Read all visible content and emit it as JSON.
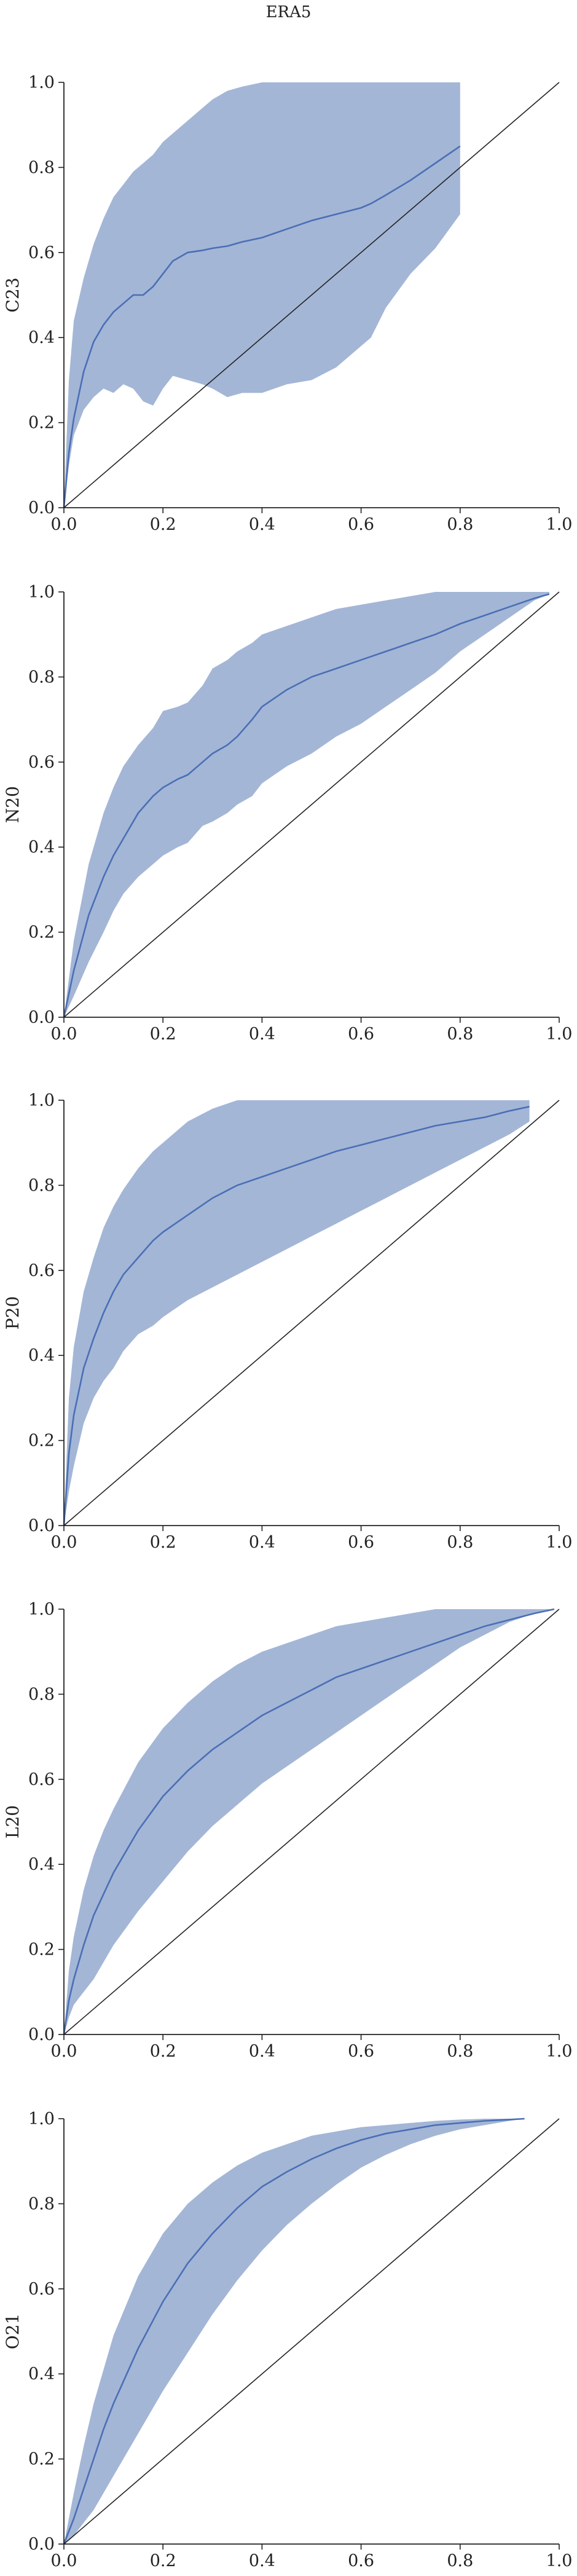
{
  "figure": {
    "title": "ERA5"
  },
  "style": {
    "band_color": "#a4b6d6",
    "line_color": "#4a6fb6",
    "axis_color": "#222222",
    "diagonal_color": "#222222"
  },
  "chart_data": [
    {
      "type": "line",
      "ylabel": "C23",
      "xlim": [
        0,
        1
      ],
      "ylim": [
        0,
        1
      ],
      "xticks": [
        0.0,
        0.2,
        0.4,
        0.6,
        0.8,
        1.0
      ],
      "yticks": [
        0.0,
        0.2,
        0.4,
        0.6,
        0.8,
        1.0
      ],
      "tick_labels": [
        "0.0",
        "0.2",
        "0.4",
        "0.6",
        "0.8",
        "1.0"
      ],
      "diagonal": true,
      "series": [
        {
          "x": [
            0.0,
            0.01,
            0.02,
            0.04,
            0.06,
            0.08,
            0.1,
            0.12,
            0.14,
            0.16,
            0.18,
            0.2,
            0.22,
            0.25,
            0.28,
            0.3,
            0.33,
            0.36,
            0.4,
            0.45,
            0.5,
            0.55,
            0.6,
            0.62,
            0.65,
            0.7,
            0.75,
            0.8
          ],
          "mean": [
            0.0,
            0.13,
            0.21,
            0.32,
            0.39,
            0.43,
            0.46,
            0.48,
            0.5,
            0.5,
            0.52,
            0.55,
            0.58,
            0.6,
            0.605,
            0.61,
            0.615,
            0.625,
            0.635,
            0.655,
            0.675,
            0.69,
            0.705,
            0.715,
            0.735,
            0.77,
            0.81,
            0.85
          ],
          "lower": [
            0.0,
            0.1,
            0.17,
            0.23,
            0.26,
            0.28,
            0.27,
            0.29,
            0.28,
            0.25,
            0.24,
            0.28,
            0.31,
            0.3,
            0.29,
            0.28,
            0.26,
            0.27,
            0.27,
            0.29,
            0.3,
            0.33,
            0.38,
            0.4,
            0.47,
            0.55,
            0.61,
            0.69
          ],
          "upper": [
            0.0,
            0.3,
            0.44,
            0.54,
            0.62,
            0.68,
            0.73,
            0.76,
            0.79,
            0.81,
            0.83,
            0.86,
            0.88,
            0.91,
            0.94,
            0.96,
            0.98,
            0.99,
            1.0,
            1.0,
            1.0,
            1.0,
            1.0,
            1.0,
            1.0,
            1.0,
            1.0,
            1.0
          ]
        }
      ]
    },
    {
      "type": "line",
      "ylabel": "N20",
      "xlim": [
        0,
        1
      ],
      "ylim": [
        0,
        1
      ],
      "xticks": [
        0.0,
        0.2,
        0.4,
        0.6,
        0.8,
        1.0
      ],
      "yticks": [
        0.0,
        0.2,
        0.4,
        0.6,
        0.8,
        1.0
      ],
      "tick_labels": [
        "0.0",
        "0.2",
        "0.4",
        "0.6",
        "0.8",
        "1.0"
      ],
      "diagonal": true,
      "series": [
        {
          "x": [
            0.0,
            0.02,
            0.05,
            0.08,
            0.1,
            0.12,
            0.15,
            0.18,
            0.2,
            0.23,
            0.25,
            0.28,
            0.3,
            0.33,
            0.35,
            0.38,
            0.4,
            0.45,
            0.5,
            0.55,
            0.6,
            0.65,
            0.7,
            0.75,
            0.8,
            0.85,
            0.9,
            0.95,
            0.98
          ],
          "mean": [
            0.0,
            0.11,
            0.24,
            0.33,
            0.38,
            0.42,
            0.48,
            0.52,
            0.54,
            0.56,
            0.57,
            0.6,
            0.62,
            0.64,
            0.66,
            0.7,
            0.73,
            0.77,
            0.8,
            0.82,
            0.84,
            0.86,
            0.88,
            0.9,
            0.925,
            0.945,
            0.965,
            0.985,
            0.995
          ],
          "lower": [
            0.0,
            0.05,
            0.13,
            0.2,
            0.25,
            0.29,
            0.33,
            0.36,
            0.38,
            0.4,
            0.41,
            0.45,
            0.46,
            0.48,
            0.5,
            0.52,
            0.55,
            0.59,
            0.62,
            0.66,
            0.69,
            0.73,
            0.77,
            0.81,
            0.86,
            0.9,
            0.94,
            0.98,
            0.995
          ],
          "upper": [
            0.0,
            0.18,
            0.36,
            0.48,
            0.54,
            0.59,
            0.64,
            0.68,
            0.72,
            0.73,
            0.74,
            0.78,
            0.82,
            0.84,
            0.86,
            0.88,
            0.9,
            0.92,
            0.94,
            0.96,
            0.97,
            0.98,
            0.99,
            1.0,
            1.0,
            1.0,
            1.0,
            1.0,
            1.0
          ]
        }
      ]
    },
    {
      "type": "line",
      "ylabel": "P20",
      "xlim": [
        0,
        1
      ],
      "ylim": [
        0,
        1
      ],
      "xticks": [
        0.0,
        0.2,
        0.4,
        0.6,
        0.8,
        1.0
      ],
      "yticks": [
        0.0,
        0.2,
        0.4,
        0.6,
        0.8,
        1.0
      ],
      "tick_labels": [
        "0.0",
        "0.2",
        "0.4",
        "0.6",
        "0.8",
        "1.0"
      ],
      "diagonal": true,
      "series": [
        {
          "x": [
            0.0,
            0.01,
            0.02,
            0.04,
            0.06,
            0.08,
            0.1,
            0.12,
            0.15,
            0.18,
            0.2,
            0.25,
            0.3,
            0.35,
            0.4,
            0.45,
            0.5,
            0.55,
            0.6,
            0.65,
            0.7,
            0.75,
            0.8,
            0.85,
            0.9,
            0.94
          ],
          "mean": [
            0.0,
            0.17,
            0.26,
            0.37,
            0.44,
            0.5,
            0.55,
            0.59,
            0.63,
            0.67,
            0.69,
            0.73,
            0.77,
            0.8,
            0.82,
            0.84,
            0.86,
            0.88,
            0.895,
            0.91,
            0.925,
            0.94,
            0.95,
            0.96,
            0.975,
            0.985
          ],
          "lower": [
            0.0,
            0.08,
            0.14,
            0.24,
            0.3,
            0.34,
            0.37,
            0.41,
            0.45,
            0.47,
            0.49,
            0.53,
            0.56,
            0.59,
            0.62,
            0.65,
            0.68,
            0.71,
            0.74,
            0.77,
            0.8,
            0.83,
            0.86,
            0.89,
            0.92,
            0.95
          ],
          "upper": [
            0.0,
            0.3,
            0.42,
            0.55,
            0.63,
            0.7,
            0.75,
            0.79,
            0.84,
            0.88,
            0.9,
            0.95,
            0.98,
            1.0,
            1.0,
            1.0,
            1.0,
            1.0,
            1.0,
            1.0,
            1.0,
            1.0,
            1.0,
            1.0,
            1.0,
            1.0
          ]
        }
      ]
    },
    {
      "type": "line",
      "ylabel": "L20",
      "xlim": [
        0,
        1
      ],
      "ylim": [
        0,
        1
      ],
      "xticks": [
        0.0,
        0.2,
        0.4,
        0.6,
        0.8,
        1.0
      ],
      "yticks": [
        0.0,
        0.2,
        0.4,
        0.6,
        0.8,
        1.0
      ],
      "tick_labels": [
        "0.0",
        "0.2",
        "0.4",
        "0.6",
        "0.8",
        "1.0"
      ],
      "diagonal": true,
      "series": [
        {
          "x": [
            0.0,
            0.01,
            0.02,
            0.04,
            0.06,
            0.08,
            0.1,
            0.15,
            0.2,
            0.25,
            0.3,
            0.35,
            0.4,
            0.45,
            0.5,
            0.55,
            0.6,
            0.65,
            0.7,
            0.75,
            0.8,
            0.85,
            0.9,
            0.95,
            0.99
          ],
          "mean": [
            0.0,
            0.08,
            0.13,
            0.21,
            0.28,
            0.33,
            0.38,
            0.48,
            0.56,
            0.62,
            0.67,
            0.71,
            0.75,
            0.78,
            0.81,
            0.84,
            0.86,
            0.88,
            0.9,
            0.92,
            0.94,
            0.96,
            0.975,
            0.99,
            1.0
          ],
          "lower": [
            0.0,
            0.04,
            0.07,
            0.1,
            0.13,
            0.17,
            0.21,
            0.29,
            0.36,
            0.43,
            0.49,
            0.54,
            0.59,
            0.63,
            0.67,
            0.71,
            0.75,
            0.79,
            0.83,
            0.87,
            0.91,
            0.94,
            0.97,
            0.99,
            1.0
          ],
          "upper": [
            0.0,
            0.15,
            0.23,
            0.34,
            0.42,
            0.48,
            0.53,
            0.64,
            0.72,
            0.78,
            0.83,
            0.87,
            0.9,
            0.92,
            0.94,
            0.96,
            0.97,
            0.98,
            0.99,
            1.0,
            1.0,
            1.0,
            1.0,
            1.0,
            1.0
          ]
        }
      ]
    },
    {
      "type": "line",
      "ylabel": "O21",
      "xlim": [
        0,
        1
      ],
      "ylim": [
        0,
        1
      ],
      "xticks": [
        0.0,
        0.2,
        0.4,
        0.6,
        0.8,
        1.0
      ],
      "yticks": [
        0.0,
        0.2,
        0.4,
        0.6,
        0.8,
        1.0
      ],
      "tick_labels": [
        "0.0",
        "0.2",
        "0.4",
        "0.6",
        "0.8",
        "1.0"
      ],
      "diagonal": true,
      "series": [
        {
          "x": [
            0.0,
            0.02,
            0.04,
            0.06,
            0.08,
            0.1,
            0.15,
            0.2,
            0.25,
            0.3,
            0.35,
            0.4,
            0.45,
            0.5,
            0.55,
            0.6,
            0.65,
            0.7,
            0.75,
            0.8,
            0.85,
            0.9,
            0.93
          ],
          "mean": [
            0.0,
            0.06,
            0.13,
            0.2,
            0.27,
            0.33,
            0.46,
            0.57,
            0.66,
            0.73,
            0.79,
            0.84,
            0.875,
            0.905,
            0.93,
            0.95,
            0.965,
            0.975,
            0.985,
            0.99,
            0.995,
            0.998,
            1.0
          ],
          "lower": [
            0.0,
            0.02,
            0.05,
            0.08,
            0.12,
            0.16,
            0.26,
            0.36,
            0.45,
            0.54,
            0.62,
            0.69,
            0.75,
            0.8,
            0.845,
            0.885,
            0.915,
            0.94,
            0.96,
            0.975,
            0.985,
            0.995,
            1.0
          ],
          "upper": [
            0.0,
            0.12,
            0.23,
            0.33,
            0.41,
            0.49,
            0.63,
            0.73,
            0.8,
            0.85,
            0.89,
            0.92,
            0.94,
            0.96,
            0.97,
            0.98,
            0.985,
            0.99,
            0.995,
            0.998,
            1.0,
            1.0,
            1.0
          ]
        }
      ]
    }
  ]
}
